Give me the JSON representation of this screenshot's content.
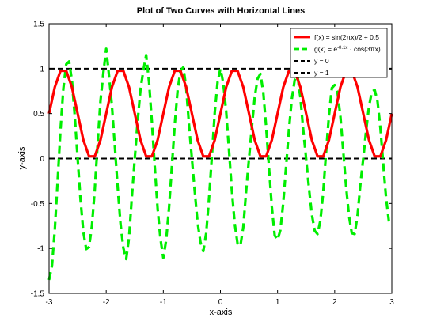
{
  "chart_data": {
    "type": "line",
    "title": "Plot of Two Curves with Horizontal Lines",
    "xlabel": "x-axis",
    "ylabel": "y-axis",
    "xlim": [
      -3,
      3
    ],
    "ylim": [
      -1.5,
      1.5
    ],
    "x_ticks": [
      -3,
      -2,
      -1,
      0,
      1,
      2,
      3
    ],
    "y_ticks": [
      -1.5,
      -1,
      -0.5,
      0,
      0.5,
      1,
      1.5
    ],
    "x_tick_labels": [
      "-3",
      "-2",
      "-1",
      "0",
      "1",
      "2",
      "3"
    ],
    "y_tick_labels": [
      "-1.5",
      "-1",
      "-0.5",
      "0",
      "0.5",
      "1",
      "1.5"
    ],
    "grid": false,
    "legend_position": "top-right",
    "series": [
      {
        "name": "f(x) = sin(2πx)/2 + 0.5",
        "legend_parts": [
          "f(x) = sin(2",
          "π",
          "x)/2 + 0.5"
        ],
        "color": "#ff0000",
        "style": "solid",
        "x": [
          -3,
          -2.9,
          -2.8,
          -2.7,
          -2.6,
          -2.5,
          -2.4,
          -2.3,
          -2.2,
          -2.1,
          -2,
          -1.9,
          -1.8,
          -1.7,
          -1.6,
          -1.5,
          -1.4,
          -1.3,
          -1.2,
          -1.1,
          -1,
          -0.9,
          -0.8,
          -0.7,
          -0.6,
          -0.5,
          -0.4,
          -0.3,
          -0.2,
          -0.1,
          0,
          0.1,
          0.2,
          0.3,
          0.4,
          0.5,
          0.6,
          0.7,
          0.8,
          0.9,
          1,
          1.1,
          1.2,
          1.3,
          1.4,
          1.5,
          1.6,
          1.7,
          1.8,
          1.9,
          2,
          2.1,
          2.2,
          2.3,
          2.4,
          2.5,
          2.6,
          2.7,
          2.8,
          2.9,
          3
        ],
        "y": [
          0.5,
          0.794,
          0.976,
          0.976,
          0.794,
          0.5,
          0.206,
          0.024,
          0.024,
          0.206,
          0.5,
          0.794,
          0.976,
          0.976,
          0.794,
          0.5,
          0.206,
          0.024,
          0.024,
          0.206,
          0.5,
          0.794,
          0.976,
          0.976,
          0.794,
          0.5,
          0.206,
          0.024,
          0.024,
          0.206,
          0.5,
          0.794,
          0.976,
          0.976,
          0.794,
          0.5,
          0.206,
          0.024,
          0.024,
          0.206,
          0.5,
          0.794,
          0.976,
          0.976,
          0.794,
          0.5,
          0.206,
          0.024,
          0.024,
          0.206,
          0.5,
          0.794,
          0.976,
          0.976,
          0.794,
          0.5,
          0.206,
          0.024,
          0.024,
          0.206,
          0.5
        ]
      },
      {
        "name": "g(x) = e^-0.1x · cos(3πx)",
        "legend_parts": [
          "g(x) = e",
          "-0.1x",
          " · cos(3",
          "π",
          "x)"
        ],
        "color": "#00ee00",
        "style": "dashed",
        "x": [
          -3,
          -2.95,
          -2.9,
          -2.85,
          -2.8,
          -2.75,
          -2.7,
          -2.65,
          -2.6,
          -2.55,
          -2.5,
          -2.45,
          -2.4,
          -2.35,
          -2.3,
          -2.25,
          -2.2,
          -2.15,
          -2.1,
          -2.05,
          -2,
          -1.95,
          -1.9,
          -1.85,
          -1.8,
          -1.75,
          -1.7,
          -1.65,
          -1.6,
          -1.55,
          -1.5,
          -1.45,
          -1.4,
          -1.35,
          -1.3,
          -1.25,
          -1.2,
          -1.15,
          -1.1,
          -1.05,
          -1,
          -0.95,
          -0.9,
          -0.85,
          -0.8,
          -0.75,
          -0.7,
          -0.65,
          -0.6,
          -0.55,
          -0.5,
          -0.45,
          -0.4,
          -0.35,
          -0.3,
          -0.25,
          -0.2,
          -0.15,
          -0.1,
          -0.05,
          0,
          0.05,
          0.1,
          0.15,
          0.2,
          0.25,
          0.3,
          0.35,
          0.4,
          0.45,
          0.5,
          0.55,
          0.6,
          0.65,
          0.7,
          0.75,
          0.8,
          0.85,
          0.9,
          0.95,
          1,
          1.05,
          1.1,
          1.15,
          1.2,
          1.25,
          1.3,
          1.35,
          1.4,
          1.45,
          1.5,
          1.55,
          1.6,
          1.65,
          1.7,
          1.75,
          1.8,
          1.85,
          1.9,
          1.95,
          2,
          2.05,
          2.1,
          2.15,
          2.2,
          2.25,
          2.3,
          2.35,
          2.4,
          2.45,
          2.5,
          2.55,
          2.6,
          2.65,
          2.7,
          2.75,
          2.8,
          2.85,
          2.9,
          2.95,
          3
        ],
        "y": [
          -1.35,
          -1.199,
          -0.794,
          -0.245,
          0.319,
          0.779,
          1.049,
          1.08,
          0.87,
          0.469,
          0,
          -0.455,
          -0.817,
          -1.007,
          -0.983,
          -0.748,
          -0.346,
          0.168,
          0.642,
          0.953,
          1.221,
          0.919,
          0.589,
          0.146,
          -0.312,
          -0.722,
          -0.995,
          -1.118,
          -0.879,
          -0.422,
          0,
          0.412,
          0.768,
          0.977,
          1.151,
          0.85,
          0.405,
          -0.089,
          -0.557,
          -0.893,
          -1.105,
          -0.906,
          -0.547,
          -0.084,
          0.378,
          0.756,
          0.975,
          1.015,
          0.791,
          0.374,
          0,
          -0.365,
          -0.711,
          -0.929,
          -1.03,
          -0.834,
          -0.442,
          0.022,
          0.508,
          0.849,
          1,
          0.838,
          0.525,
          0.089,
          -0.357,
          -0.725,
          -0.948,
          -0.968,
          -0.763,
          -0.36,
          0,
          0.351,
          0.68,
          0.888,
          0.942,
          0.736,
          0.353,
          -0.098,
          -0.539,
          -0.856,
          -0.905,
          -0.795,
          -0.491,
          -0.083,
          0.328,
          0.664,
          0.873,
          0.92,
          0.678,
          0.314,
          0,
          -0.332,
          -0.621,
          -0.803,
          -0.84,
          -0.689,
          -0.369,
          0.075,
          0.48,
          0.784,
          0.818,
          0.734,
          0.469,
          0.079,
          -0.313,
          -0.636,
          -0.831,
          -0.84,
          -0.631,
          -0.289,
          0,
          0.309,
          0.576,
          0.742,
          0.763,
          0.634,
          0.34,
          -0.066,
          -0.44,
          -0.705,
          -0.741
        ]
      },
      {
        "name": "y = 0",
        "color": "#000000",
        "style": "dashed",
        "x": [
          -3,
          3
        ],
        "y": [
          0,
          0
        ]
      },
      {
        "name": "y = 1",
        "color": "#000000",
        "style": "dashed",
        "x": [
          -3,
          3
        ],
        "y": [
          1,
          1
        ]
      }
    ]
  }
}
